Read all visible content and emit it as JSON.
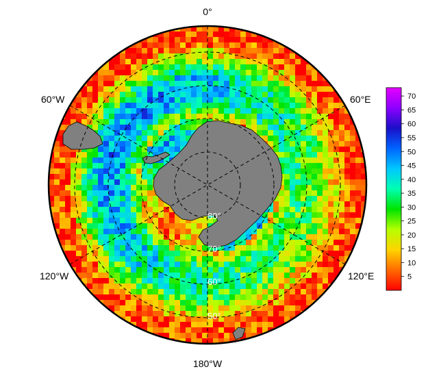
{
  "map": {
    "projection": "south-polar-stereographic",
    "land_color": "#808080",
    "grid_style": "dashed-black",
    "longitude_labels": {
      "top": "0°",
      "upper_left": "60°W",
      "upper_right": "60°E",
      "lower_left": "120°W",
      "lower_right": "120°E",
      "bottom": "180°W"
    },
    "latitude_labels": [
      "80°",
      "70°",
      "60°",
      "50°"
    ]
  },
  "colorbar": {
    "ticks": [
      "70",
      "65",
      "60",
      "55",
      "50",
      "45",
      "40",
      "35",
      "30",
      "25",
      "20",
      "15",
      "10",
      "5"
    ],
    "range": [
      0,
      73
    ],
    "colormap": [
      "#ff0000",
      "#ff6a00",
      "#ffd400",
      "#b5ff00",
      "#00e400",
      "#00ffb0",
      "#00c8ff",
      "#0064ff",
      "#1a10c8",
      "#8c00ff",
      "#e600ff"
    ]
  }
}
